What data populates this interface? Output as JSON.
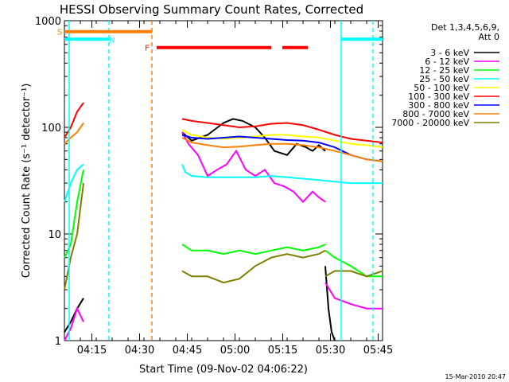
{
  "chart_data": {
    "type": "line",
    "title": "HESSI Observing Summary Count Rates, Corrected",
    "xlabel": "Start Time (09-Nov-02 04:06:22)",
    "ylabel": "Corrected Count Rate (s⁻¹ detector⁻¹)",
    "ylog": true,
    "ylim": [
      1,
      1000
    ],
    "xlim_minutes": [
      0,
      100
    ],
    "x_ticks": [
      "04:15",
      "04:30",
      "04:45",
      "05:00",
      "05:15",
      "05:30",
      "05:45"
    ],
    "x_tick_minutes": [
      8.63,
      23.63,
      38.63,
      53.63,
      68.63,
      83.63,
      98.63
    ],
    "y_ticks": [
      {
        "value": 1,
        "label": "1"
      },
      {
        "value": 10,
        "label": "10"
      },
      {
        "value": 100,
        "label": "100"
      },
      {
        "value": 1000,
        "label": "1000"
      }
    ],
    "legend": {
      "placement": "right",
      "header_lines": [
        "Det 1,3,4,5,6,9,",
        "Att 0"
      ]
    },
    "series": [
      {
        "name": "3 - 6 keV",
        "color": "#000000",
        "segments": [
          {
            "x": [
              0,
              2,
              4,
              6
            ],
            "y": [
              1.2,
              1.5,
              2,
              2.5
            ]
          },
          {
            "x": [
              37,
              40,
              45,
              50,
              53,
              56,
              60,
              63,
              66,
              70,
              73,
              76,
              78,
              80,
              82
            ],
            "y": [
              90,
              75,
              85,
              110,
              120,
              115,
              100,
              80,
              60,
              55,
              70,
              65,
              60,
              68,
              60
            ]
          },
          {
            "x": [
              82,
              83,
              84,
              85
            ],
            "y": [
              5,
              2,
              1.2,
              1
            ]
          }
        ]
      },
      {
        "name": "6 - 12 keV",
        "color": "#ff00ff",
        "segments": [
          {
            "x": [
              0,
              2,
              4,
              6
            ],
            "y": [
              1,
              1.3,
              2,
              1.5
            ]
          },
          {
            "x": [
              37,
              39,
              42,
              45,
              48,
              51,
              54,
              57,
              60,
              63,
              66,
              69,
              72,
              75,
              78,
              80,
              82
            ],
            "y": [
              90,
              70,
              55,
              35,
              40,
              45,
              60,
              40,
              35,
              40,
              30,
              28,
              25,
              20,
              25,
              22,
              20
            ]
          },
          {
            "x": [
              82,
              85,
              90,
              95,
              100
            ],
            "y": [
              3.5,
              2.5,
              2.2,
              2,
              2
            ]
          }
        ]
      },
      {
        "name": "12 - 25 keV",
        "color": "#00ff00",
        "segments": [
          {
            "x": [
              0,
              2,
              4,
              6
            ],
            "y": [
              6,
              8,
              20,
              40
            ]
          },
          {
            "x": [
              37,
              40,
              45,
              50,
              55,
              60,
              65,
              70,
              75,
              80,
              82
            ],
            "y": [
              8,
              7,
              7,
              6.5,
              7,
              6.5,
              7,
              7.5,
              7,
              7.5,
              8
            ]
          },
          {
            "x": [
              82,
              85,
              90,
              95,
              100
            ],
            "y": [
              7,
              6,
              5,
              4,
              4
            ]
          }
        ]
      },
      {
        "name": "25 - 50 keV",
        "color": "#00ffff",
        "segments": [
          {
            "x": [
              0,
              2,
              4,
              6
            ],
            "y": [
              20,
              30,
              40,
              45
            ]
          },
          {
            "x": [
              37,
              38,
              40,
              45,
              50,
              55,
              60,
              65,
              70,
              75,
              80,
              85,
              90,
              95,
              100
            ],
            "y": [
              45,
              38,
              35,
              34,
              34,
              34,
              34,
              35,
              34,
              33,
              32,
              31,
              30,
              30,
              30
            ]
          }
        ]
      },
      {
        "name": "50 - 100 keV",
        "color": "#ffff00",
        "segments": [
          {
            "x": [
              37,
              40,
              45,
              50,
              55,
              60,
              65,
              70,
              75,
              80,
              85,
              90,
              95,
              100
            ],
            "y": [
              95,
              85,
              80,
              78,
              80,
              82,
              85,
              85,
              82,
              80,
              75,
              70,
              68,
              65
            ]
          }
        ]
      },
      {
        "name": "100 - 300 keV",
        "color": "#ff0000",
        "segments": [
          {
            "x": [
              0,
              2,
              4,
              6
            ],
            "y": [
              80,
              100,
              140,
              170
            ]
          },
          {
            "x": [
              37,
              40,
              45,
              50,
              55,
              60,
              65,
              70,
              75,
              80,
              85,
              90,
              95,
              100
            ],
            "y": [
              120,
              115,
              110,
              105,
              100,
              102,
              108,
              110,
              105,
              95,
              85,
              78,
              75,
              72
            ]
          }
        ]
      },
      {
        "name": "300 - 800 keV",
        "color": "#0000ff",
        "segments": [
          {
            "x": [
              37,
              40,
              45,
              50,
              55,
              60,
              65,
              70,
              75,
              80,
              85,
              90,
              95,
              100
            ],
            "y": [
              85,
              80,
              78,
              80,
              82,
              80,
              78,
              76,
              75,
              72,
              65,
              55,
              50,
              48
            ]
          }
        ]
      },
      {
        "name": "800 - 7000 keV",
        "color": "#ff8000",
        "segments": [
          {
            "x": [
              0,
              2,
              4,
              6
            ],
            "y": [
              70,
              80,
              90,
              110
            ]
          },
          {
            "x": [
              37,
              40,
              45,
              50,
              55,
              60,
              65,
              70,
              75,
              80,
              85,
              90,
              95,
              100
            ],
            "y": [
              80,
              72,
              68,
              65,
              66,
              68,
              70,
              70,
              68,
              65,
              60,
              55,
              50,
              48
            ]
          }
        ]
      },
      {
        "name": "7000 - 20000 keV",
        "color": "#808000",
        "segments": [
          {
            "x": [
              0,
              2,
              4,
              6
            ],
            "y": [
              3,
              6,
              10,
              30
            ]
          },
          {
            "x": [
              37,
              40,
              45,
              50,
              55,
              60,
              65,
              70,
              75,
              80,
              82
            ],
            "y": [
              4.5,
              4,
              4,
              3.5,
              3.8,
              5,
              6,
              6.5,
              6,
              6.5,
              7
            ]
          },
          {
            "x": [
              82,
              85,
              90,
              95,
              100
            ],
            "y": [
              4,
              4.5,
              4.5,
              4,
              4.5
            ]
          }
        ]
      }
    ],
    "vlines": [
      {
        "x": 1.5,
        "color": "#00ffff",
        "style": "solid"
      },
      {
        "x": 14,
        "color": "#00ffff",
        "style": "dashed"
      },
      {
        "x": 27.5,
        "color": "#ff8000",
        "style": "dashed"
      },
      {
        "x": 87,
        "color": "#00ffff",
        "style": "solid"
      },
      {
        "x": 97,
        "color": "#00ffff",
        "style": "dashed"
      }
    ],
    "flag_bars": [
      {
        "x0": 0,
        "x1": 27.5,
        "y": 790,
        "color": "#ff8000"
      },
      {
        "x0": 0,
        "x1": 14,
        "y": 670,
        "color": "#00ffff"
      },
      {
        "x0": 87,
        "x1": 100,
        "y": 670,
        "color": "#00ffff"
      },
      {
        "x0": 29,
        "x1": 65,
        "y": 560,
        "color": "#ff0000"
      },
      {
        "x0": 68.5,
        "x1": 76.5,
        "y": 560,
        "color": "#ff0000"
      }
    ],
    "flag_labels": [
      {
        "text": "S",
        "x": -1.5,
        "y": 790,
        "color": "#ff8000"
      },
      {
        "text": "N",
        "x": 15,
        "y": 670,
        "color": "#00ffff"
      },
      {
        "text": "F",
        "x": 26,
        "y": 560,
        "color": "#ff0000"
      }
    ],
    "footer_date": "15-Mar-2010 20:47"
  }
}
